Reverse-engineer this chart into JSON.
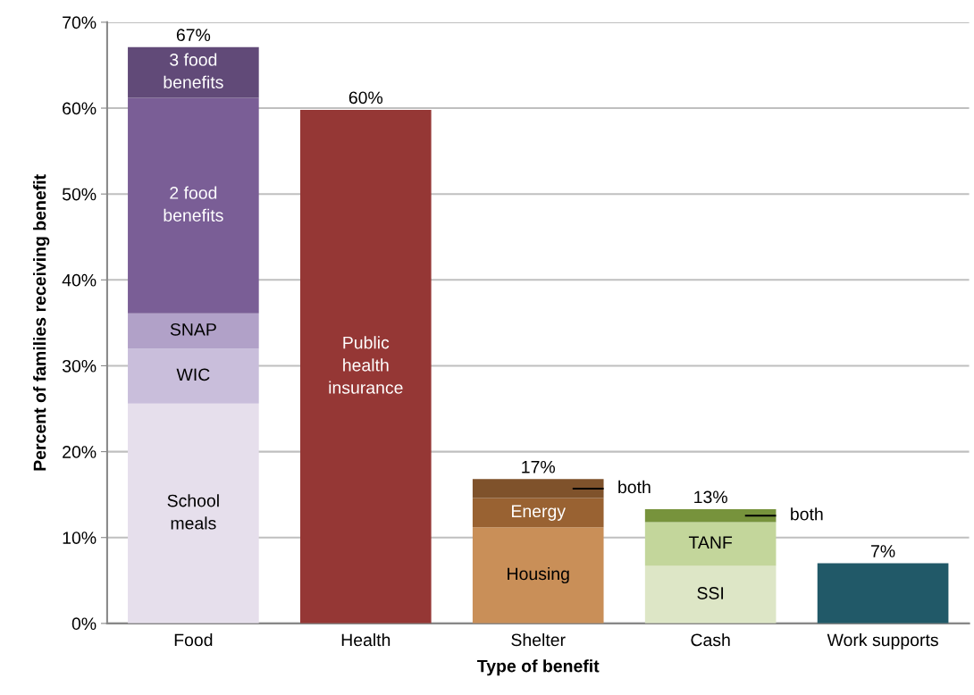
{
  "chart_data": {
    "type": "bar",
    "stacked": true,
    "xlabel": "Type of benefit",
    "ylabel": "Percent of families receiving benefit",
    "categories": [
      "Food",
      "Health",
      "Shelter",
      "Cash",
      "Work supports"
    ],
    "series": [
      {
        "name": "School meals",
        "color": "#e6dfec",
        "values": [
          25.6,
          null,
          null,
          null,
          null
        ]
      },
      {
        "name": "WIC",
        "color": "#c9bedb",
        "values": [
          6.4,
          null,
          null,
          null,
          null
        ]
      },
      {
        "name": "SNAP",
        "color": "#b1a1c8",
        "values": [
          4.1,
          null,
          null,
          null,
          null
        ]
      },
      {
        "name": "2 food benefits",
        "color": "#7a5e96",
        "values": [
          25.1,
          null,
          null,
          null,
          null
        ]
      },
      {
        "name": "3 food benefits",
        "color": "#614a78",
        "values": [
          5.9,
          null,
          null,
          null,
          null
        ]
      },
      {
        "name": "Public health insurance",
        "color": "#953735",
        "values": [
          null,
          59.8,
          null,
          null,
          null
        ]
      },
      {
        "name": "Housing",
        "color": "#c98f58",
        "values": [
          null,
          null,
          11.2,
          null,
          null
        ]
      },
      {
        "name": "Energy",
        "color": "#996232",
        "values": [
          null,
          null,
          3.4,
          null,
          null
        ]
      },
      {
        "name": "both",
        "color": "#7f522b",
        "values": [
          null,
          null,
          2.2,
          null,
          null
        ]
      },
      {
        "name": "SSI",
        "color": "#dde6c6",
        "values": [
          null,
          null,
          null,
          6.7,
          null
        ]
      },
      {
        "name": "TANF",
        "color": "#c3d69b",
        "values": [
          null,
          null,
          null,
          5.1,
          null
        ]
      },
      {
        "name": "both",
        "color": "#77933c",
        "values": [
          null,
          null,
          null,
          1.5,
          null
        ]
      },
      {
        "color": "#215968",
        "values": [
          null,
          null,
          null,
          null,
          7.0
        ]
      }
    ],
    "totals": [
      "67%",
      "60%",
      "17%",
      "13%",
      "7%"
    ],
    "ylim": [
      0,
      70
    ],
    "yticks": [
      {
        "value": 0,
        "label": "0%"
      },
      {
        "value": 10,
        "label": "10%"
      },
      {
        "value": 20,
        "label": "20%"
      },
      {
        "value": 30,
        "label": "30%"
      },
      {
        "value": 40,
        "label": "40%"
      },
      {
        "value": 50,
        "label": "50%"
      },
      {
        "value": 60,
        "label": "60%"
      },
      {
        "value": 70,
        "label": "70%"
      }
    ],
    "grid": "y",
    "legend": false
  }
}
